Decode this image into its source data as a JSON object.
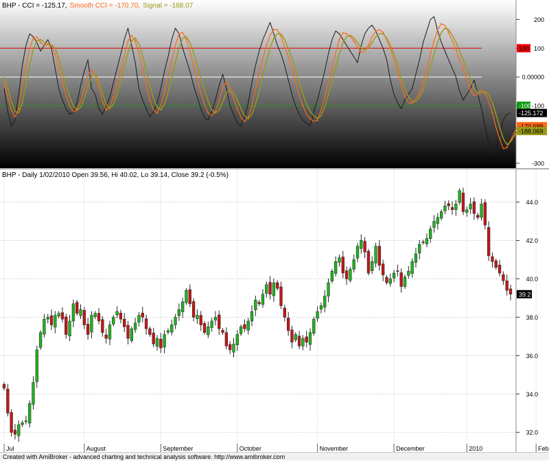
{
  "footer": "Created with AmiBroker - advanced charting and technical analysis software. http://www.amibroker.com",
  "colors": {
    "up": "#22b122",
    "down": "#c01818",
    "cci": "#1a1a1a",
    "smooth": "#ff6a1a",
    "signal": "#9a9a1a",
    "overbought": "#dd0000",
    "oversold": "#229922",
    "zero": "#ffffff"
  },
  "chart_data": [
    {
      "type": "line",
      "title": "BHP - CCI",
      "legend": [
        {
          "label": "BHP - CCI = -125.17,",
          "color": "#000000"
        },
        {
          "label": "Smooth CCI = -170.70,",
          "color": "#ff6a1a"
        },
        {
          "label": "Signal = -188.07",
          "color": "#9a9a1a"
        }
      ],
      "ylim": [
        -300,
        220
      ],
      "y_ticks": [
        200,
        100,
        "0.00000",
        -100,
        -300
      ],
      "levels": [
        {
          "value": 100,
          "label": "100",
          "color": "#dd0000"
        },
        {
          "value": 0,
          "label": "0.00000",
          "color": "#ffffff"
        },
        {
          "value": -100,
          "label": "-100",
          "color": "#229922"
        }
      ],
      "value_badges": [
        {
          "value": -125.17,
          "label": "-125.172",
          "bg": "#000000",
          "fg": "#ffffff"
        },
        {
          "value": -170.7,
          "label": "-170.699",
          "bg": "#ff6a1a",
          "fg": "#000000"
        },
        {
          "value": -188.07,
          "label": "-188.069",
          "bg": "#9a9a1a",
          "fg": "#000000"
        }
      ],
      "series": [
        {
          "name": "CCI",
          "values": [
            -40,
            -120,
            -170,
            -150,
            -60,
            40,
            110,
            150,
            140,
            120,
            90,
            110,
            130,
            100,
            30,
            -40,
            -80,
            -110,
            -130,
            -120,
            -90,
            -30,
            20,
            60,
            -40,
            -60,
            -110,
            -130,
            -100,
            -70,
            -20,
            30,
            80,
            130,
            170,
            110,
            50,
            -40,
            -80,
            -110,
            -140,
            -120,
            -90,
            -40,
            20,
            70,
            130,
            170,
            150,
            100,
            60,
            20,
            -30,
            -70,
            -110,
            -140,
            -150,
            -120,
            -80,
            -30,
            10,
            -40,
            -100,
            -130,
            -160,
            -170,
            -140,
            -90,
            -20,
            40,
            90,
            130,
            160,
            190,
            150,
            110,
            80,
            40,
            -10,
            -60,
            -100,
            -130,
            -150,
            -160,
            -170,
            -120,
            -80,
            -30,
            20,
            80,
            130,
            160,
            150,
            130,
            110,
            90,
            70,
            50,
            110,
            150,
            170,
            180,
            160,
            130,
            100,
            60,
            -10,
            -60,
            -90,
            -110,
            -80,
            -60,
            -40,
            10,
            60,
            120,
            160,
            200,
            210,
            160,
            120,
            90,
            60,
            30,
            0,
            -50,
            -80,
            -60,
            -40,
            -10,
            -60,
            -110,
            -170,
            -230,
            -270,
            -250,
            -200,
            -150,
            -130,
            -125.17
          ]
        },
        {
          "name": "Smooth CCI",
          "values": [
            -20,
            -70,
            -115,
            -140,
            -110,
            -30,
            40,
            100,
            135,
            140,
            120,
            110,
            112,
            110,
            80,
            30,
            -20,
            -65,
            -100,
            -120,
            -115,
            -85,
            -45,
            5,
            25,
            5,
            -35,
            -85,
            -115,
            -105,
            -70,
            -25,
            20,
            75,
            125,
            145,
            125,
            85,
            25,
            -30,
            -80,
            -115,
            -125,
            -100,
            -55,
            0,
            55,
            110,
            150,
            155,
            130,
            90,
            40,
            -10,
            -55,
            -95,
            -125,
            -135,
            -120,
            -85,
            -40,
            -15,
            -40,
            -75,
            -110,
            -140,
            -155,
            -140,
            -100,
            -45,
            15,
            65,
            110,
            145,
            165,
            165,
            140,
            105,
            70,
            30,
            -20,
            -65,
            -100,
            -130,
            -145,
            -155,
            -150,
            -115,
            -70,
            -20,
            30,
            85,
            130,
            155,
            150,
            140,
            125,
            105,
            85,
            90,
            110,
            140,
            160,
            165,
            155,
            130,
            100,
            60,
            15,
            -30,
            -65,
            -90,
            -90,
            -75,
            -55,
            -20,
            25,
            80,
            125,
            165,
            185,
            180,
            155,
            125,
            95,
            60,
            30,
            -10,
            -45,
            -65,
            -60,
            -45,
            -55,
            -85,
            -125,
            -175,
            -215,
            -250,
            -245,
            -220,
            -195,
            -170.7
          ]
        },
        {
          "name": "Signal",
          "values": [
            0,
            -40,
            -85,
            -120,
            -125,
            -90,
            -25,
            40,
            95,
            125,
            130,
            122,
            115,
            112,
            100,
            65,
            20,
            -30,
            -70,
            -100,
            -115,
            -105,
            -75,
            -35,
            0,
            10,
            -15,
            -55,
            -95,
            -110,
            -95,
            -60,
            -15,
            35,
            85,
            125,
            135,
            115,
            75,
            20,
            -30,
            -75,
            -105,
            -115,
            -95,
            -55,
            -5,
            50,
            100,
            135,
            140,
            120,
            85,
            40,
            -5,
            -45,
            -85,
            -115,
            -125,
            -115,
            -85,
            -55,
            -45,
            -55,
            -80,
            -110,
            -135,
            -145,
            -130,
            -95,
            -50,
            5,
            55,
            100,
            135,
            150,
            150,
            130,
            100,
            65,
            25,
            -20,
            -60,
            -95,
            -120,
            -135,
            -145,
            -135,
            -105,
            -60,
            -15,
            35,
            80,
            120,
            140,
            145,
            135,
            120,
            100,
            95,
            100,
            120,
            140,
            150,
            150,
            135,
            110,
            80,
            40,
            -5,
            -40,
            -70,
            -85,
            -85,
            -70,
            -45,
            -10,
            35,
            80,
            120,
            155,
            170,
            165,
            145,
            120,
            90,
            60,
            25,
            -10,
            -40,
            -55,
            -55,
            -50,
            -60,
            -90,
            -130,
            -175,
            -215,
            -235,
            -225,
            -205,
            -188.07
          ]
        }
      ]
    },
    {
      "type": "candlestick",
      "title": "BHP - Daily 1/02/2010 Open 39.56, Hi 40.02, Lo 39.14, Close 39.2 (-0.5%)",
      "ylim": [
        31.4,
        45.2
      ],
      "y_ticks": [
        "44.0",
        "42.0",
        "40.0",
        "38.0",
        "36.0",
        "34.0",
        "32.0"
      ],
      "x_labels": [
        "Jul",
        "August",
        "September",
        "October",
        "November",
        "December",
        "2010",
        "February"
      ],
      "label_index": [
        0,
        22,
        43,
        64,
        86,
        107,
        127,
        146
      ],
      "last_close": "39.2",
      "close": [
        34.3,
        33.0,
        32.0,
        31.9,
        32.4,
        32.5,
        32.6,
        33.5,
        34.6,
        36.3,
        37.2,
        37.9,
        38.0,
        37.6,
        38.1,
        38.2,
        37.9,
        37.1,
        37.8,
        38.7,
        38.2,
        38.4,
        37.6,
        37.1,
        38.1,
        38.2,
        37.8,
        37.2,
        36.9,
        37.6,
        38.0,
        38.3,
        37.9,
        37.5,
        36.9,
        37.4,
        37.7,
        38.1,
        38.0,
        37.4,
        37.1,
        36.6,
        36.9,
        36.4,
        37.1,
        37.3,
        37.6,
        38.0,
        38.4,
        38.8,
        39.4,
        38.7,
        38.0,
        38.1,
        37.6,
        37.2,
        37.5,
        37.8,
        38.0,
        37.4,
        37.2,
        36.5,
        36.3,
        36.6,
        37.1,
        37.5,
        37.4,
        37.8,
        38.3,
        38.9,
        38.7,
        39.2,
        39.7,
        39.2,
        39.8,
        39.5,
        38.6,
        38.0,
        37.3,
        36.7,
        37.1,
        36.5,
        36.9,
        36.7,
        37.2,
        37.9,
        38.3,
        38.6,
        39.1,
        39.8,
        40.4,
        40.9,
        41.1,
        40.3,
        40.0,
        40.5,
        41.0,
        41.7,
        42.0,
        41.4,
        40.3,
        40.9,
        41.7,
        40.7,
        40.2,
        39.8,
        40.0,
        40.3,
        40.4,
        39.6,
        40.1,
        40.4,
        40.9,
        41.3,
        41.8,
        41.9,
        42.1,
        42.6,
        43.0,
        43.2,
        43.5,
        43.8,
        43.8,
        43.6,
        43.9,
        44.6,
        43.5,
        43.6,
        43.9,
        43.4,
        43.2,
        43.9,
        42.8,
        41.2,
        40.9,
        40.6,
        40.3,
        39.9,
        39.4,
        39.2
      ]
    }
  ]
}
